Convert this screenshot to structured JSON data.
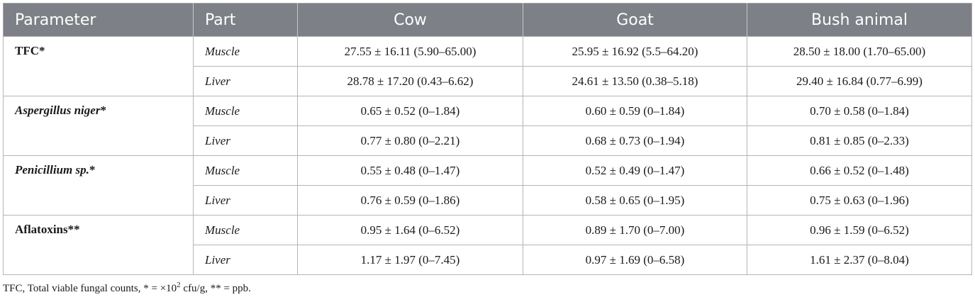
{
  "table": {
    "headers": [
      "Parameter",
      "Part",
      "Cow",
      "Goat",
      "Bush animal"
    ],
    "rows": [
      {
        "parameter": "TFC",
        "marker": "*",
        "italic": false,
        "parts": [
          {
            "part": "Muscle",
            "cow": "27.55 ± 16.11 (5.90–65.00)",
            "goat": "25.95 ± 16.92 (5.5–64.20)",
            "bush": "28.50 ± 18.00 (1.70–65.00)"
          },
          {
            "part": "Liver",
            "cow": "28.78 ± 17.20 (0.43–6.62)",
            "goat": "24.61 ± 13.50 (0.38–5.18)",
            "bush": "29.40 ± 16.84 (0.77–6.99)"
          }
        ]
      },
      {
        "parameter": "Aspergillus niger",
        "marker": "*",
        "italic": true,
        "parts": [
          {
            "part": "Muscle",
            "cow": "0.65 ± 0.52 (0–1.84)",
            "goat": "0.60 ± 0.59 (0–1.84)",
            "bush": "0.70 ± 0.58 (0–1.84)"
          },
          {
            "part": "Liver",
            "cow": "0.77 ± 0.80 (0–2.21)",
            "goat": "0.68 ± 0.73 (0–1.94)",
            "bush": "0.81 ± 0.85 (0–2.33)"
          }
        ]
      },
      {
        "parameter": "Penicillium sp.",
        "marker": "*",
        "italic": true,
        "parts": [
          {
            "part": "Muscle",
            "cow": "0.55 ± 0.48 (0–1.47)",
            "goat": "0.52 ± 0.49 (0–1.47)",
            "bush": "0.66 ± 0.52 (0–1.48)"
          },
          {
            "part": "Liver",
            "cow": "0.76 ± 0.59 (0–1.86)",
            "goat": "0.58 ± 0.65 (0–1.95)",
            "bush": "0.75 ± 0.63 (0–1.96)"
          }
        ]
      },
      {
        "parameter": "Aflatoxins",
        "marker": "**",
        "italic": false,
        "parts": [
          {
            "part": "Muscle",
            "cow": "0.95 ± 1.64 (0–6.52)",
            "goat": "0.89 ± 1.70 (0–7.00)",
            "bush": "0.96 ± 1.59 (0–6.52)"
          },
          {
            "part": "Liver",
            "cow": "1.17 ± 1.97 (0–7.45)",
            "goat": "0.97 ± 1.69 (0–6.58)",
            "bush": "1.61 ± 2.37 (0–8.04)"
          }
        ]
      }
    ]
  },
  "footnote": {
    "text_before": "TFC, Total viable fungal counts, * = ×10",
    "exponent": "2",
    "text_after": " cfu/g, ** = ppb."
  }
}
